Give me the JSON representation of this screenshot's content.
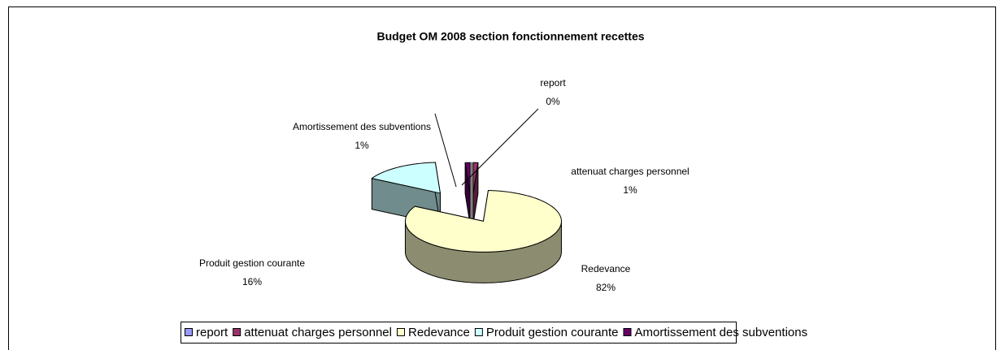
{
  "chart_data": {
    "type": "pie3d",
    "title": "Budget OM 2008 section fonctionnement recettes",
    "categories": [
      "report",
      "attenuat charges personnel",
      "Redevance",
      "Produit gestion courante",
      "Amortissement des subventions"
    ],
    "values": [
      0,
      1,
      82,
      16,
      1
    ],
    "value_labels": [
      "0%",
      "1%",
      "82%",
      "16%",
      "1%"
    ],
    "colors": [
      "#9999ff",
      "#993366",
      "#ffffcc",
      "#ccffff",
      "#660066"
    ],
    "legend": "bottom"
  }
}
